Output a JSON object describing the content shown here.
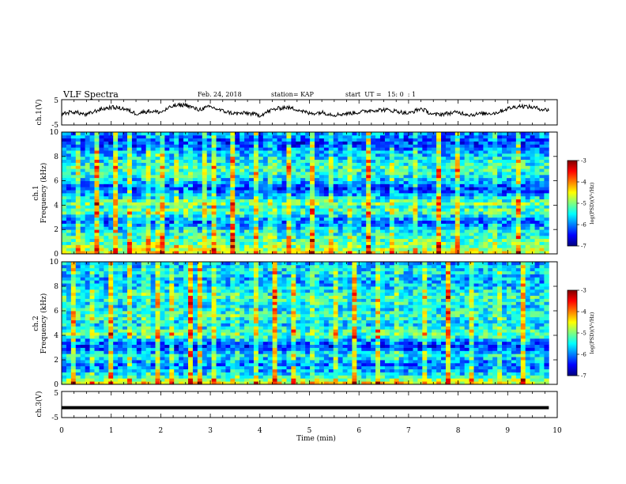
{
  "header": {
    "title": "VLF Spectra",
    "date": "Feb. 24, 2018",
    "station": "station= KAP",
    "start": "start  UT =   15: 0  : 1"
  },
  "colors": {
    "colormap": [
      "#00007f",
      "#0000ff",
      "#007fff",
      "#00ffff",
      "#7fff7f",
      "#ffff00",
      "#ff7f00",
      "#ff0000",
      "#7f0000"
    ],
    "trace": "#000000",
    "axis": "#000000",
    "background": "#ffffff"
  },
  "chart_data": [
    {
      "type": "line",
      "panel": "ch1-waveform",
      "ylabel": "ch.1(V)",
      "ylim": [
        -5,
        5
      ],
      "yticks": [
        "5",
        "-5"
      ],
      "xlim": [
        0,
        10
      ],
      "x_end_min": 9.83,
      "series": [
        {
          "x": [
            0,
            0.25,
            0.5,
            0.75,
            1.0,
            1.25,
            1.5,
            1.75,
            2.0,
            2.25,
            2.5,
            2.75,
            3.0,
            3.25,
            3.5,
            3.75,
            4.0,
            4.25,
            4.5,
            4.75,
            5.0,
            5.25,
            5.5,
            5.75,
            6.0,
            6.25,
            6.5,
            6.75,
            7.0,
            7.25,
            7.5,
            7.75,
            8.0,
            8.25,
            8.5,
            8.75,
            9.0,
            9.25,
            9.5,
            9.75
          ],
          "values": [
            -0.5,
            0.2,
            -1.0,
            1.0,
            2.0,
            1.5,
            -0.5,
            0.5,
            0.0,
            2.5,
            3.0,
            1.0,
            2.2,
            0.5,
            -0.5,
            -0.3,
            -1.2,
            1.0,
            2.0,
            1.2,
            -0.5,
            0.0,
            -1.0,
            -0.5,
            0.0,
            0.8,
            1.0,
            0.5,
            -0.5,
            1.5,
            -1.0,
            -0.5,
            0.0,
            -1.0,
            -0.5,
            -0.3,
            1.5,
            2.5,
            2.0,
            1.0
          ]
        }
      ]
    },
    {
      "type": "heatmap",
      "panel": "ch1-spectrogram",
      "ylabel": "ch.1 Frequency (kHz)",
      "xlim": [
        0,
        10
      ],
      "ylim": [
        0,
        10
      ],
      "yticks": [
        "0",
        "2",
        "4",
        "6",
        "8",
        "10"
      ],
      "colorbar": {
        "label": "log(PSD)(V²/Hz)",
        "range": [
          -7,
          -3
        ],
        "ticks": [
          "-3",
          "-4",
          "-5",
          "-6",
          "-7"
        ]
      },
      "band_level": [
        -4.6,
        -4.8,
        -5.0,
        -5.1,
        -5.2,
        -5.3,
        -5.4,
        -5.5,
        -5.7,
        -5.9,
        -6.1,
        -5.9,
        -5.6,
        -5.3,
        -5.2,
        -5.4,
        -5.0,
        -5.3,
        -5.6,
        -5.9,
        -6.1,
        -6.3,
        -6.1,
        -5.9,
        -5.7,
        -5.5,
        -5.4,
        -5.3,
        -5.3,
        -5.4,
        -5.5,
        -5.6,
        -5.7,
        -5.8,
        -6.0,
        -6.2,
        -6.3,
        -6.2,
        -6.0,
        -5.9
      ],
      "event_times": [
        0.3,
        0.7,
        1.1,
        1.35,
        1.72,
        1.9,
        2.05,
        2.35,
        2.55,
        2.85,
        3.05,
        3.45,
        3.9,
        4.25,
        4.6,
        5.05,
        5.4,
        5.85,
        6.2,
        6.7,
        7.1,
        7.6,
        8.0,
        8.7,
        9.2
      ]
    },
    {
      "type": "heatmap",
      "panel": "ch2-spectrogram",
      "ylabel": "ch.2 Frequency (kHz)",
      "xlim": [
        0,
        10
      ],
      "ylim": [
        0,
        10
      ],
      "yticks": [
        "0",
        "2",
        "4",
        "6",
        "8",
        "10"
      ],
      "colorbar": {
        "label": "log(PSD)(V²/Hz)",
        "range": [
          -7,
          -3
        ],
        "ticks": [
          "-3",
          "-4",
          "-5",
          "-6",
          "-7"
        ]
      },
      "band_level": [
        -4.5,
        -4.9,
        -5.3,
        -5.6,
        -5.8,
        -5.9,
        -6.0,
        -5.9,
        -5.7,
        -5.5,
        -5.8,
        -6.1,
        -6.3,
        -6.1,
        -5.8,
        -5.4,
        -5.2,
        -5.3,
        -5.5,
        -5.6,
        -5.5,
        -5.4,
        -5.3,
        -5.4,
        -5.5,
        -5.6,
        -5.5,
        -5.4,
        -5.3,
        -5.4,
        -5.5,
        -5.6,
        -5.7,
        -5.8,
        -5.8,
        -5.7,
        -5.6,
        -5.6,
        -5.7,
        -5.8
      ],
      "event_times": [
        0.25,
        0.65,
        1.0,
        1.4,
        1.7,
        1.95,
        2.2,
        2.6,
        2.8,
        3.1,
        3.5,
        3.9,
        4.3,
        4.7,
        5.1,
        5.5,
        5.9,
        6.4,
        6.8,
        7.3,
        7.8,
        8.3,
        8.8,
        9.3
      ]
    },
    {
      "type": "line",
      "panel": "ch3-waveform",
      "ylabel": "ch.3(V)",
      "ylim": [
        -5,
        5
      ],
      "yticks": [
        "5",
        "-5"
      ],
      "xlim": [
        0,
        10
      ],
      "xlabel": "Time (min)",
      "xticks": [
        "0",
        "1",
        "2",
        "3",
        "4",
        "5",
        "6",
        "7",
        "8",
        "9",
        "10"
      ],
      "series": [
        {
          "x": [
            0,
            9.83
          ],
          "values": [
            -1.2,
            -1.2
          ]
        }
      ]
    }
  ]
}
